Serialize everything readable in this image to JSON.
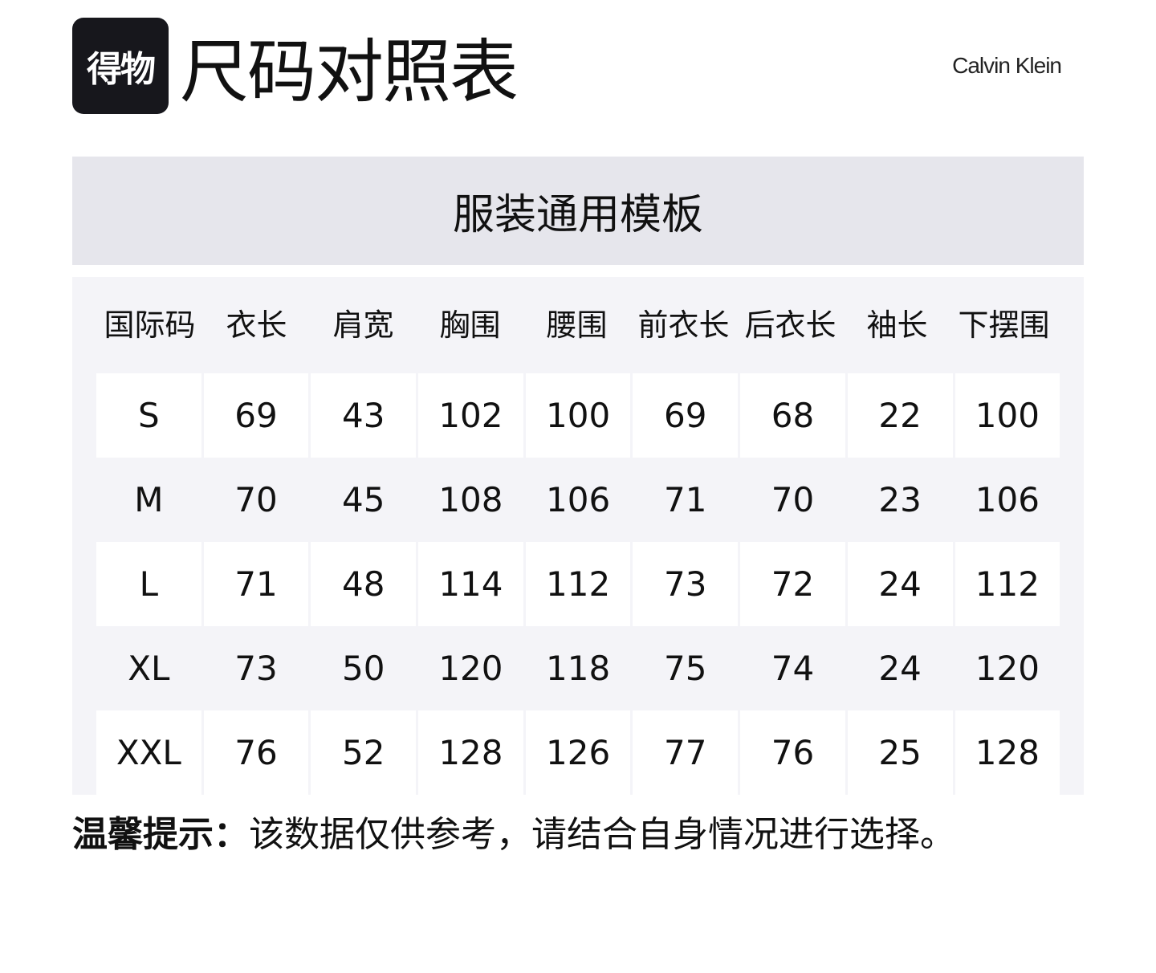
{
  "header": {
    "logo_text": "得物",
    "title": "尺码对照表",
    "brand": "Calvin Klein"
  },
  "template_title": "服装通用模板",
  "table": {
    "columns": [
      "国际码",
      "衣长",
      "肩宽",
      "胸围",
      "腰围",
      "前衣长",
      "后衣长",
      "袖长",
      "下摆围"
    ],
    "rows": [
      [
        "S",
        "69",
        "43",
        "102",
        "100",
        "69",
        "68",
        "22",
        "100"
      ],
      [
        "M",
        "70",
        "45",
        "108",
        "106",
        "71",
        "70",
        "23",
        "106"
      ],
      [
        "L",
        "71",
        "48",
        "114",
        "112",
        "73",
        "72",
        "24",
        "112"
      ],
      [
        "XL",
        "73",
        "50",
        "120",
        "118",
        "75",
        "74",
        "24",
        "120"
      ],
      [
        "XXL",
        "76",
        "52",
        "128",
        "126",
        "77",
        "76",
        "25",
        "128"
      ]
    ]
  },
  "tip": {
    "label": "温馨提示：",
    "text": "该数据仅供参考，请结合自身情况进行选择。"
  }
}
